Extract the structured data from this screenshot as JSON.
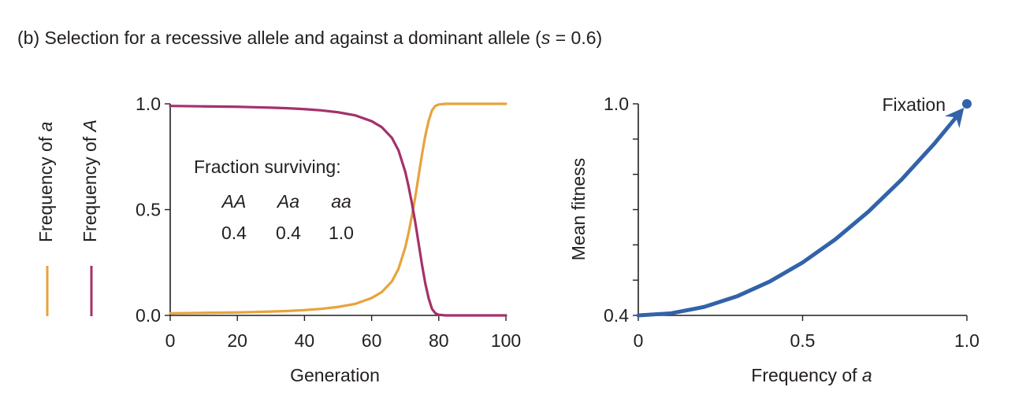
{
  "figure_title": {
    "prefix": "(b) Selection for a recessive allele and against a dominant allele (",
    "s_symbol": "s",
    "suffix": " = 0.6)"
  },
  "chart_data": [
    {
      "type": "line",
      "title": "",
      "xlabel": "Generation",
      "ylabel_series": [
        "Frequency of a",
        "Frequency of A"
      ],
      "xlim": [
        0,
        100
      ],
      "ylim": [
        0,
        1
      ],
      "xticks": [
        0,
        20,
        40,
        60,
        80,
        100
      ],
      "xtick_labels": [
        "0",
        "20",
        "40",
        "60",
        "80",
        "100"
      ],
      "yticks": [
        0,
        0.5,
        1
      ],
      "ytick_labels": [
        "0.0",
        "0.5",
        "1.0"
      ],
      "grid": false,
      "legend": "left, vertical labels with colored line swatches",
      "series": [
        {
          "name": "Frequency of a",
          "color": "#e8a33d",
          "x": [
            0,
            5,
            10,
            15,
            20,
            25,
            30,
            35,
            40,
            45,
            50,
            55,
            60,
            63,
            66,
            68,
            70,
            71,
            72,
            73,
            74,
            75,
            76,
            77,
            78,
            79,
            80,
            82,
            85,
            90,
            95,
            100
          ],
          "values": [
            0.01,
            0.011,
            0.012,
            0.013,
            0.014,
            0.016,
            0.018,
            0.021,
            0.025,
            0.031,
            0.04,
            0.054,
            0.082,
            0.11,
            0.16,
            0.22,
            0.32,
            0.39,
            0.47,
            0.56,
            0.66,
            0.76,
            0.85,
            0.92,
            0.97,
            0.99,
            0.997,
            1.0,
            1.0,
            1.0,
            1.0,
            1.0
          ]
        },
        {
          "name": "Frequency of A",
          "color": "#a5316b",
          "x": [
            0,
            5,
            10,
            15,
            20,
            25,
            30,
            35,
            40,
            45,
            50,
            55,
            60,
            63,
            66,
            68,
            70,
            71,
            72,
            73,
            74,
            75,
            76,
            77,
            78,
            79,
            80,
            82,
            85,
            90,
            95,
            100
          ],
          "values": [
            0.99,
            0.989,
            0.988,
            0.987,
            0.986,
            0.984,
            0.982,
            0.979,
            0.975,
            0.969,
            0.96,
            0.946,
            0.918,
            0.89,
            0.84,
            0.78,
            0.68,
            0.61,
            0.53,
            0.44,
            0.34,
            0.24,
            0.15,
            0.08,
            0.03,
            0.01,
            0.003,
            0.0,
            0.0,
            0.0,
            0.0,
            0.0
          ]
        }
      ],
      "annotations": {
        "heading": "Fraction surviving:",
        "genotypes": [
          "AA",
          "Aa",
          "aa"
        ],
        "survival": [
          "0.4",
          "0.4",
          "1.0"
        ]
      }
    },
    {
      "type": "line",
      "title": "",
      "xlabel": "Frequency of a",
      "ylabel": "Mean fitness",
      "xlim": [
        0,
        1
      ],
      "ylim": [
        0.4,
        1
      ],
      "xticks": [
        0,
        0.5,
        1
      ],
      "xtick_labels": [
        "0",
        "0.5",
        "1.0"
      ],
      "yticks": [
        0.4,
        0.5,
        0.6,
        0.7,
        0.8,
        0.9,
        1.0
      ],
      "ytick_labels": [
        "0.4",
        "",
        "",
        "",
        "",
        "",
        "1.0"
      ],
      "grid": false,
      "series": [
        {
          "name": "Mean fitness",
          "color": "#3263a8",
          "x": [
            0,
            0.1,
            0.2,
            0.3,
            0.4,
            0.5,
            0.6,
            0.7,
            0.8,
            0.9,
            0.97
          ],
          "values": [
            0.4,
            0.406,
            0.424,
            0.454,
            0.496,
            0.55,
            0.616,
            0.694,
            0.784,
            0.886,
            0.965
          ]
        }
      ],
      "endpoint": {
        "x": 1.0,
        "y": 1.0,
        "label": "Fixation"
      }
    }
  ]
}
